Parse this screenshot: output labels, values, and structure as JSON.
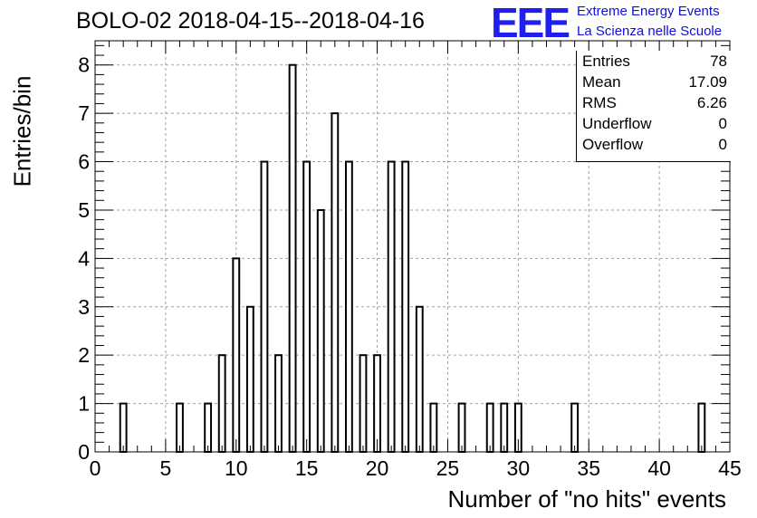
{
  "title": "BOLO-02 2018-04-15--2018-04-16",
  "logo": {
    "mark": "EEE",
    "line1": "Extreme Energy Events",
    "line2": "La Scienza nelle Scuole",
    "color": "#1e1ef0"
  },
  "stats": [
    {
      "name": "Entries",
      "value": "78"
    },
    {
      "name": "Mean",
      "value": "17.09"
    },
    {
      "name": "RMS",
      "value": "6.26"
    },
    {
      "name": "Underflow",
      "value": "0"
    },
    {
      "name": "Overflow",
      "value": "0"
    }
  ],
  "chart_data": {
    "type": "bar",
    "title": "BOLO-02 2018-04-15--2018-04-16",
    "xlabel": "Number of \"no hits\" events",
    "ylabel": "Entries/bin",
    "xlim": [
      0,
      45
    ],
    "ylim": [
      0,
      8.5
    ],
    "xticks": [
      0,
      5,
      10,
      15,
      20,
      25,
      30,
      35,
      40,
      45
    ],
    "yticks": [
      0,
      1,
      2,
      3,
      4,
      5,
      6,
      7,
      8
    ],
    "grid": true,
    "bin_width": 1,
    "bins": [
      {
        "x": 2,
        "value": 1
      },
      {
        "x": 6,
        "value": 1
      },
      {
        "x": 8,
        "value": 1
      },
      {
        "x": 9,
        "value": 2
      },
      {
        "x": 10,
        "value": 4
      },
      {
        "x": 11,
        "value": 3
      },
      {
        "x": 12,
        "value": 6
      },
      {
        "x": 13,
        "value": 2
      },
      {
        "x": 14,
        "value": 8
      },
      {
        "x": 15,
        "value": 6
      },
      {
        "x": 16,
        "value": 5
      },
      {
        "x": 17,
        "value": 7
      },
      {
        "x": 18,
        "value": 6
      },
      {
        "x": 19,
        "value": 2
      },
      {
        "x": 20,
        "value": 2
      },
      {
        "x": 21,
        "value": 6
      },
      {
        "x": 22,
        "value": 6
      },
      {
        "x": 23,
        "value": 3
      },
      {
        "x": 24,
        "value": 1
      },
      {
        "x": 26,
        "value": 1
      },
      {
        "x": 28,
        "value": 1
      },
      {
        "x": 29,
        "value": 1
      },
      {
        "x": 30,
        "value": 1
      },
      {
        "x": 34,
        "value": 1
      },
      {
        "x": 43,
        "value": 1
      }
    ]
  }
}
